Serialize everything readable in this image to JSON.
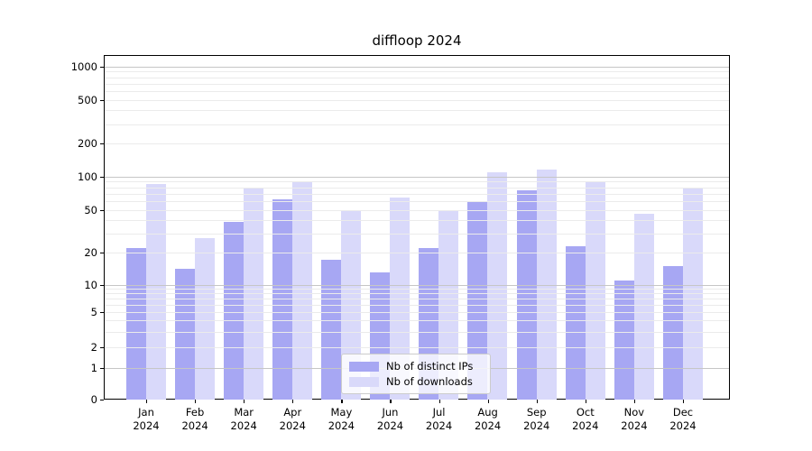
{
  "chart_data": {
    "type": "bar",
    "title": "diffloop 2024",
    "categories": [
      "Jan 2024",
      "Feb 2024",
      "Mar 2024",
      "Apr 2024",
      "May 2024",
      "Jun 2024",
      "Jul 2024",
      "Aug 2024",
      "Sep 2024",
      "Oct 2024",
      "Nov 2024",
      "Dec 2024"
    ],
    "series": [
      {
        "name": "Nb of distinct IPs",
        "color": "#a7a7f3",
        "values": [
          22,
          14,
          39,
          62,
          17,
          13,
          22,
          60,
          75,
          23,
          11,
          15
        ]
      },
      {
        "name": "Nb of downloads",
        "color": "#d9d9fa",
        "values": [
          85,
          27,
          80,
          91,
          50,
          65,
          50,
          110,
          115,
          90,
          46,
          78
        ]
      }
    ],
    "yscale": "symlog",
    "yticks": [
      0,
      1,
      2,
      5,
      10,
      20,
      50,
      100,
      200,
      500,
      1000
    ],
    "ylim": [
      0,
      1000
    ],
    "grid": true,
    "legend_position": "lower center",
    "colors": {
      "major_grid": "#c6c6c6",
      "minor_grid": "#ebebeb",
      "spine": "#000000"
    }
  }
}
